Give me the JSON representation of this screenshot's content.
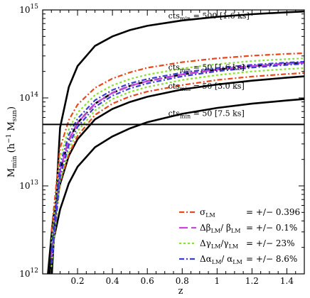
{
  "chart_data": {
    "type": "line",
    "xlabel": "z",
    "ylabel": "M_min (h^-1 M_sun)",
    "xlim": [
      0.0,
      1.5
    ],
    "ylim": [
      1000000000000.0,
      1000000000000000.0
    ],
    "yscale": "log",
    "x_ticks": [
      0.2,
      0.4,
      0.6,
      0.8,
      1,
      1.2,
      1.4
    ],
    "x_tick_labels": [
      "0.2",
      "0.4",
      "0.6",
      "0.8",
      "1",
      "1.2",
      "1.4"
    ],
    "y_ticks": [
      1000000000000.0,
      10000000000000.0,
      100000000000000.0,
      1000000000000000.0
    ],
    "y_tick_labels": [
      {
        "base": "10",
        "exp": "12"
      },
      {
        "base": "10",
        "exp": "13"
      },
      {
        "base": "10",
        "exp": "14"
      },
      {
        "base": "10",
        "exp": "15"
      }
    ],
    "threshold_line": {
      "value": 50000000000000.0,
      "color": "#000000"
    },
    "series": [
      {
        "label": "cts_min = 500 [1.6 ks]",
        "color": "#000000",
        "style": "solid",
        "x": [
          0.05,
          0.1,
          0.15,
          0.2,
          0.3,
          0.4,
          0.5,
          0.6,
          0.8,
          1.0,
          1.2,
          1.4,
          1.5
        ],
        "y": [
          800000000000.0,
          46000000000000.0,
          133000000000000.0,
          230000000000000.0,
          390000000000000.0,
          500000000000000.0,
          590000000000000.0,
          660000000000000.0,
          760000000000000.0,
          835000000000000.0,
          895000000000000.0,
          940000000000000.0,
          960000000000000.0
        ]
      },
      {
        "label": "cts_min = 50 [1.6 ks]",
        "color": "#000000",
        "style": "dashed",
        "x": [
          0.05,
          0.1,
          0.15,
          0.2,
          0.3,
          0.4,
          0.5,
          0.6,
          0.8,
          1.0,
          1.2,
          1.4,
          1.5
        ],
        "y": [
          1500000000000.0,
          15000000000000.0,
          33000000000000.0,
          52000000000000.0,
          86000000000000.0,
          114000000000000.0,
          137000000000000.0,
          155000000000000.0,
          185000000000000.0,
          210000000000000.0,
          230000000000000.0,
          245000000000000.0,
          252000000000000.0
        ]
      },
      {
        "label": "cts_min = 50 [3.0 ks]",
        "color": "#000000",
        "style": "solid",
        "x": [
          0.03,
          0.06,
          0.1,
          0.15,
          0.2,
          0.3,
          0.4,
          0.5,
          0.6,
          0.8,
          1.0,
          1.2,
          1.4,
          1.5
        ],
        "y": [
          1000000000000.0,
          4300000000000.0,
          10500000000000.0,
          22000000000000.0,
          34000000000000.0,
          57000000000000.0,
          75000000000000.0,
          90000000000000.0,
          103000000000000.0,
          125000000000000.0,
          142000000000000.0,
          157000000000000.0,
          170000000000000.0,
          176000000000000.0
        ]
      },
      {
        "label": "cts_min = 50 [7.5 ks]",
        "color": "#000000",
        "style": "solid",
        "x": [
          0.04,
          0.06,
          0.1,
          0.15,
          0.2,
          0.3,
          0.4,
          0.5,
          0.6,
          0.8,
          1.0,
          1.2,
          1.4,
          1.5
        ],
        "y": [
          1000000000000.0,
          2300000000000.0,
          5400000000000.0,
          10700000000000.0,
          16500000000000.0,
          27500000000000.0,
          36500000000000.0,
          45000000000000.0,
          53000000000000.0,
          66000000000000.0,
          77000000000000.0,
          86000000000000.0,
          93500000000000.0,
          97000000000000.0
        ]
      },
      {
        "label": "σ_LM upper",
        "color": "#e8481c",
        "style": "dashdot",
        "x": [
          0.05,
          0.1,
          0.15,
          0.2,
          0.3,
          0.4,
          0.5,
          0.6,
          0.8,
          1.0,
          1.2,
          1.4,
          1.5
        ],
        "y": [
          3000000000000.0,
          27000000000000.0,
          56000000000000.0,
          84000000000000.0,
          130000000000000.0,
          166000000000000.0,
          195000000000000.0,
          220000000000000.0,
          255000000000000.0,
          282000000000000.0,
          302000000000000.0,
          317000000000000.0,
          322000000000000.0
        ]
      },
      {
        "label": "σ_LM lower",
        "color": "#e8481c",
        "style": "dashdot",
        "x": [
          0.05,
          0.1,
          0.15,
          0.2,
          0.3,
          0.4,
          0.5,
          0.6,
          0.8,
          1.0,
          1.2,
          1.4,
          1.5
        ],
        "y": [
          1300000000000.0,
          11000000000000.0,
          23000000000000.0,
          37000000000000.0,
          64000000000000.0,
          86000000000000.0,
          104000000000000.0,
          118000000000000.0,
          140000000000000.0,
          160000000000000.0,
          175000000000000.0,
          187000000000000.0,
          192000000000000.0
        ]
      },
      {
        "label": "Δβ_LM/β_LM",
        "color": "#cc44dd",
        "style": "longdash",
        "x": [
          0.05,
          0.1,
          0.15,
          0.2,
          0.3,
          0.4,
          0.5,
          0.6,
          0.8,
          1.0,
          1.2,
          1.4,
          1.5
        ],
        "y": [
          1500000000000.0,
          15000000000000.0,
          33000000000000.0,
          52000000000000.0,
          86000000000000.0,
          114000000000000.0,
          137000000000000.0,
          155000000000000.0,
          185000000000000.0,
          210000000000000.0,
          230000000000000.0,
          245000000000000.0,
          252000000000000.0
        ]
      },
      {
        "label": "Δγ_LM/γ_LM upper",
        "color": "#88e030",
        "style": "dotted",
        "x": [
          0.05,
          0.1,
          0.15,
          0.2,
          0.3,
          0.4,
          0.5,
          0.6,
          0.8,
          1.0,
          1.2,
          1.4,
          1.5
        ],
        "y": [
          2200000000000.0,
          21000000000000.0,
          44000000000000.0,
          68000000000000.0,
          108000000000000.0,
          139000000000000.0,
          164000000000000.0,
          184000000000000.0,
          216000000000000.0,
          242000000000000.0,
          262000000000000.0,
          276000000000000.0,
          282000000000000.0
        ]
      },
      {
        "label": "Δγ_LM/γ_LM lower",
        "color": "#88e030",
        "style": "dotted",
        "x": [
          0.05,
          0.1,
          0.15,
          0.2,
          0.3,
          0.4,
          0.5,
          0.6,
          0.8,
          1.0,
          1.2,
          1.4,
          1.5
        ],
        "y": [
          1200000000000.0,
          11500000000000.0,
          26000000000000.0,
          42000000000000.0,
          72000000000000.0,
          97000000000000.0,
          117000000000000.0,
          133000000000000.0,
          160000000000000.0,
          182000000000000.0,
          200000000000000.0,
          213000000000000.0,
          218000000000000.0
        ]
      },
      {
        "label": "Δα_LM/α_LM upper",
        "color": "#3b3bd9",
        "style": "dashdot",
        "x": [
          0.05,
          0.1,
          0.15,
          0.2,
          0.3,
          0.4,
          0.5,
          0.6,
          0.8,
          1.0,
          1.2,
          1.4,
          1.5
        ],
        "y": [
          1800000000000.0,
          17500000000000.0,
          38000000000000.0,
          58000000000000.0,
          94000000000000.0,
          123000000000000.0,
          146000000000000.0,
          164000000000000.0,
          194000000000000.0,
          219000000000000.0,
          238000000000000.0,
          252000000000000.0,
          258000000000000.0
        ]
      },
      {
        "label": "Δα_LM/α_LM lower",
        "color": "#3b3bd9",
        "style": "dashdot",
        "x": [
          0.05,
          0.1,
          0.15,
          0.2,
          0.3,
          0.4,
          0.5,
          0.6,
          0.8,
          1.0,
          1.2,
          1.4,
          1.5
        ],
        "y": [
          1300000000000.0,
          12800000000000.0,
          29000000000000.0,
          47000000000000.0,
          79000000000000.0,
          106000000000000.0,
          128000000000000.0,
          146000000000000.0,
          176000000000000.0,
          201000000000000.0,
          221000000000000.0,
          237000000000000.0,
          244000000000000.0
        ]
      }
    ],
    "annotations": [
      {
        "text": "cts_min = 500 [1.6 ks]",
        "main": "cts",
        "sub": "min",
        "rest": " = 500 [1.6 ks]",
        "x": 0.72,
        "y": 760000000000000.0
      },
      {
        "text": "cts_min = 50 [1.6 ks]",
        "main": "cts",
        "sub": "min",
        "rest": " = 50 [1.6 ks]",
        "x": 0.72,
        "y": 197000000000000.0
      },
      {
        "text": "cts_min = 50 [3.0 ks]",
        "main": "cts",
        "sub": "min",
        "rest": " = 50 [3.0 ks]",
        "x": 0.72,
        "y": 120000000000000.0
      },
      {
        "text": "cts_min = 50 [7.5 ks]",
        "main": "cts",
        "sub": "min",
        "rest": " = 50 [7.5 ks]",
        "x": 0.72,
        "y": 59000000000000.0
      }
    ],
    "legend": {
      "placement": "bottom-right",
      "entries": [
        {
          "name": "σ",
          "sub": "LM",
          "value": "= +/− 0.396",
          "color": "#e8481c",
          "style": "dashdot"
        },
        {
          "name": "Δβ",
          "sub": "LM",
          "name2": "/ β",
          "sub2": "LM",
          "value": "= +/− 0.1%",
          "color": "#cc44dd",
          "style": "longdash"
        },
        {
          "name": "Δγ",
          "sub": "LM",
          "name2": "/γ",
          "sub2": "LM",
          "value": "= +/− 23%",
          "color": "#88e030",
          "style": "dotted"
        },
        {
          "name": "Δα",
          "sub": "LM",
          "name2": "/ α",
          "sub2": "LM",
          "value": "= +/− 8.6%",
          "color": "#3b3bd9",
          "style": "dashdot"
        }
      ]
    }
  }
}
